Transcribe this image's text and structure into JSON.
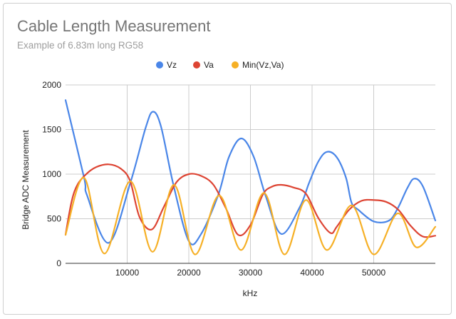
{
  "chart_data": {
    "type": "line",
    "title": "Cable Length Measurement",
    "subtitle": "Example of 6.83m long RG58",
    "xlabel": "kHz",
    "ylabel": "Bridge ADC Measurement",
    "xlim": [
      0,
      60000
    ],
    "ylim": [
      0,
      2000
    ],
    "xticks": [
      "10000",
      "20000",
      "30000",
      "40000",
      "50000"
    ],
    "yticks": [
      "0",
      "500",
      "1000",
      "1500",
      "2000"
    ],
    "grid": true,
    "legend_position": "top",
    "series": [
      {
        "name": "Vz",
        "color": "#4a86e8",
        "x": [
          0,
          3000,
          3500,
          7000,
          10500,
          13000,
          14200,
          15500,
          17500,
          20000,
          22000,
          24800,
          26500,
          28500,
          30500,
          32500,
          35000,
          38000,
          39500,
          41000,
          42400,
          44000,
          45500,
          46400,
          47500,
          50000,
          52500,
          54000,
          55500,
          56600,
          58000,
          60000
        ],
        "y": [
          1830,
          960,
          760,
          230,
          900,
          1520,
          1700,
          1530,
          880,
          250,
          330,
          770,
          1190,
          1400,
          1200,
          750,
          330,
          630,
          900,
          1140,
          1250,
          1190,
          960,
          680,
          600,
          470,
          480,
          630,
          850,
          950,
          860,
          480
        ]
      },
      {
        "name": "Va",
        "color": "#dd4433",
        "x": [
          0,
          1000,
          2000,
          3500,
          5000,
          7000,
          9000,
          10500,
          12000,
          14000,
          16000,
          18000,
          20000,
          22000,
          24000,
          26000,
          28000,
          30000,
          32000,
          33500,
          35000,
          37000,
          39000,
          41000,
          43000,
          44000,
          46000,
          48000,
          50000,
          52000,
          54000,
          56000,
          58000,
          60000
        ],
        "y": [
          320,
          700,
          890,
          1010,
          1080,
          1110,
          1060,
          920,
          520,
          380,
          640,
          910,
          1000,
          980,
          880,
          620,
          320,
          430,
          770,
          860,
          880,
          850,
          780,
          510,
          340,
          410,
          600,
          700,
          710,
          690,
          600,
          420,
          300,
          310
        ]
      },
      {
        "name": "Min(Vz,Va)",
        "color": "#f6b026",
        "x": [
          0,
          3000,
          6300,
          10500,
          14100,
          17600,
          21000,
          24900,
          28500,
          32200,
          35500,
          39000,
          42400,
          46400,
          50000,
          53900,
          56900,
          60000
        ],
        "y": [
          320,
          960,
          110,
          920,
          130,
          880,
          100,
          760,
          150,
          790,
          100,
          710,
          150,
          650,
          100,
          560,
          180,
          410
        ]
      }
    ]
  }
}
